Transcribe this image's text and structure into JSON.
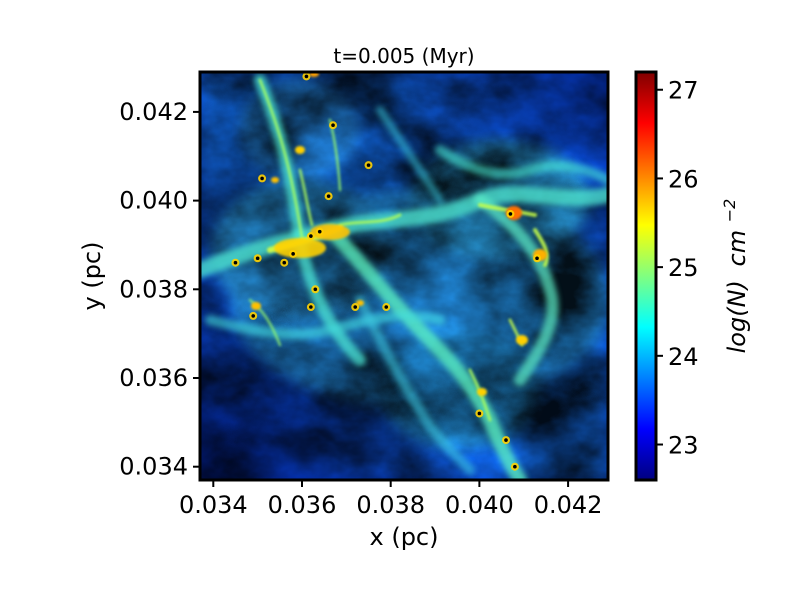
{
  "chart_data": {
    "type": "heatmap",
    "title": "t=0.005 (Myr)",
    "xlabel": "x (pc)",
    "ylabel": "y (pc)",
    "xlim": [
      0.0337,
      0.0429
    ],
    "ylim": [
      0.0337,
      0.0429
    ],
    "x_ticks": [
      {
        "value": 0.034,
        "label": "0.034"
      },
      {
        "value": 0.036,
        "label": "0.036"
      },
      {
        "value": 0.038,
        "label": "0.038"
      },
      {
        "value": 0.04,
        "label": "0.040"
      },
      {
        "value": 0.042,
        "label": "0.042"
      }
    ],
    "y_ticks": [
      {
        "value": 0.034,
        "label": "0.034"
      },
      {
        "value": 0.036,
        "label": "0.036"
      },
      {
        "value": 0.038,
        "label": "0.038"
      },
      {
        "value": 0.04,
        "label": "0.040"
      },
      {
        "value": 0.042,
        "label": "0.042"
      }
    ],
    "colorbar": {
      "label": "log(N) cm−2",
      "label_main": "log(N)",
      "label_unit": "cm",
      "label_exp": "−2",
      "range": [
        22.6,
        27.2
      ],
      "ticks": [
        {
          "value": 23,
          "label": "23"
        },
        {
          "value": 24,
          "label": "24"
        },
        {
          "value": 25,
          "label": "25"
        },
        {
          "value": 26,
          "label": "26"
        },
        {
          "value": 27,
          "label": "27"
        }
      ],
      "colormap": "jet",
      "colors": [
        "#000080",
        "#0000ff",
        "#0080ff",
        "#00ffff",
        "#80ff80",
        "#ffff00",
        "#ff8000",
        "#ff0000",
        "#800000"
      ]
    },
    "sinks": [
      {
        "x": 0.0345,
        "y": 0.0386
      },
      {
        "x": 0.035,
        "y": 0.0387
      },
      {
        "x": 0.0356,
        "y": 0.0386
      },
      {
        "x": 0.0358,
        "y": 0.0388
      },
      {
        "x": 0.0362,
        "y": 0.0392
      },
      {
        "x": 0.0364,
        "y": 0.0393
      },
      {
        "x": 0.0363,
        "y": 0.038
      },
      {
        "x": 0.0349,
        "y": 0.0374
      },
      {
        "x": 0.0362,
        "y": 0.0376
      },
      {
        "x": 0.0372,
        "y": 0.0376
      },
      {
        "x": 0.0379,
        "y": 0.0376
      },
      {
        "x": 0.0366,
        "y": 0.0401
      },
      {
        "x": 0.0367,
        "y": 0.0417
      },
      {
        "x": 0.0375,
        "y": 0.0408
      },
      {
        "x": 0.0351,
        "y": 0.0405
      },
      {
        "x": 0.0361,
        "y": 0.0428
      },
      {
        "x": 0.0407,
        "y": 0.0397
      },
      {
        "x": 0.0413,
        "y": 0.0387
      },
      {
        "x": 0.04,
        "y": 0.0352
      },
      {
        "x": 0.0406,
        "y": 0.0346
      },
      {
        "x": 0.0408,
        "y": 0.034
      }
    ]
  }
}
